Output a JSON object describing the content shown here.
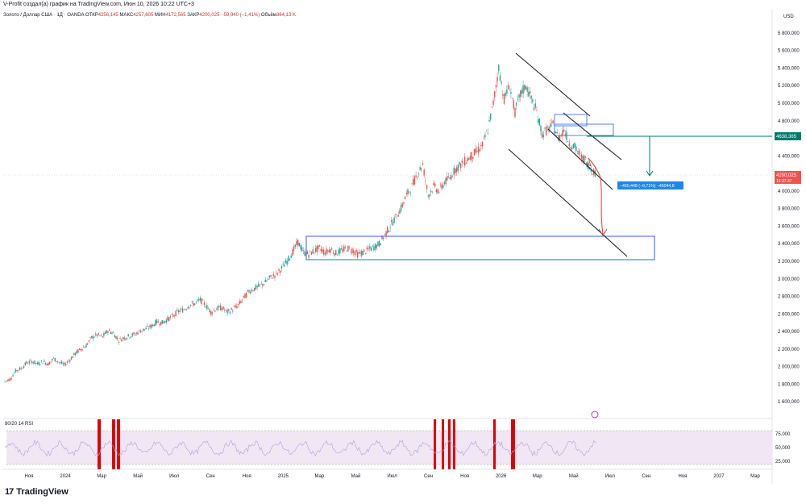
{
  "header": {
    "title": "V-Profit создал(а) график на TradingView.com, Июн 10, 2026 10:22 UTC+3"
  },
  "legend": {
    "symbol": "Золото / Доллар США · 1Д · OANDA",
    "open_label": "ОТКР",
    "open": "4256,145",
    "high_label": "МАКС",
    "high": "4257,605",
    "low_label": "МИН",
    "low": "4172,565",
    "close_label": "ЗАКР",
    "close": "4200,025",
    "change": "−59,940 (−1,41%)",
    "volume_label": "Объём",
    "volume": "364,13 K"
  },
  "currency": "USD",
  "price_tags": {
    "level": "4638,365",
    "last": "4200,025",
    "countdown": "13:37:37"
  },
  "measure_label": "−450,448 (−9,71%) −45044,8",
  "rsi": {
    "label": "80/20 14 RSI",
    "levels": [
      "75,000",
      "50,000",
      "25,000"
    ]
  },
  "brand": {
    "name": "TradingView",
    "mark": "17"
  },
  "colors": {
    "up": "#26a69a",
    "down": "#ef5350",
    "box": "#2962ff",
    "level_line": "#00796b",
    "arrow": "#e53935",
    "rsi_fill": "#f1e6f4",
    "rsi_line": "#b39ddb",
    "rsi_extreme": "#e00000",
    "tag_blue": "#1e88e5"
  },
  "chart_data": {
    "type": "candlestick",
    "ylim": [
      1400,
      5900
    ],
    "y_ticks": [
      "1 600,000",
      "1 800,000",
      "2 000,000",
      "2 200,000",
      "2 400,000",
      "2 600,000",
      "2 800,000",
      "3 000,000",
      "3 200,000",
      "3 400,000",
      "3 600,000",
      "3 800,000",
      "4 000,000",
      "4 200,000",
      "4 400,000",
      "4 600,000",
      "4 800,000",
      "5 000,000",
      "5 200,000",
      "5 400,000",
      "5 600,000",
      "5 800,000"
    ],
    "y_tick_values": [
      1600,
      1800,
      2000,
      2200,
      2400,
      2600,
      2800,
      3000,
      3200,
      3400,
      3600,
      3800,
      4000,
      4200,
      4400,
      4600,
      4800,
      5000,
      5200,
      5400,
      5600,
      5800
    ],
    "x_ticks": [
      "Ноя",
      "2024",
      "Мар",
      "Май",
      "Июл",
      "Сен",
      "Ноя",
      "2025",
      "Мар",
      "Май",
      "Июл",
      "Сен",
      "Ноя",
      "2026",
      "Мар",
      "Май",
      "Июл",
      "Сен",
      "Ноя",
      "2027",
      "Мар"
    ],
    "price_path": [
      [
        0,
        1830
      ],
      [
        4,
        1860
      ],
      [
        8,
        1950
      ],
      [
        12,
        1980
      ],
      [
        16,
        2040
      ],
      [
        20,
        2060
      ],
      [
        24,
        2030
      ],
      [
        28,
        2060
      ],
      [
        32,
        2030
      ],
      [
        36,
        2090
      ],
      [
        40,
        2050
      ],
      [
        44,
        2020
      ],
      [
        48,
        2080
      ],
      [
        52,
        2150
      ],
      [
        56,
        2200
      ],
      [
        60,
        2240
      ],
      [
        64,
        2330
      ],
      [
        68,
        2360
      ],
      [
        72,
        2340
      ],
      [
        76,
        2410
      ],
      [
        80,
        2380
      ],
      [
        84,
        2300
      ],
      [
        88,
        2330
      ],
      [
        92,
        2350
      ],
      [
        96,
        2370
      ],
      [
        100,
        2410
      ],
      [
        104,
        2430
      ],
      [
        108,
        2460
      ],
      [
        112,
        2510
      ],
      [
        116,
        2500
      ],
      [
        120,
        2540
      ],
      [
        124,
        2580
      ],
      [
        128,
        2630
      ],
      [
        132,
        2650
      ],
      [
        136,
        2700
      ],
      [
        140,
        2720
      ],
      [
        144,
        2760
      ],
      [
        148,
        2700
      ],
      [
        152,
        2620
      ],
      [
        156,
        2660
      ],
      [
        160,
        2670
      ],
      [
        164,
        2620
      ],
      [
        168,
        2650
      ],
      [
        172,
        2700
      ],
      [
        176,
        2780
      ],
      [
        180,
        2860
      ],
      [
        184,
        2890
      ],
      [
        188,
        2920
      ],
      [
        192,
        2960
      ],
      [
        196,
        3020
      ],
      [
        200,
        3050
      ],
      [
        204,
        3120
      ],
      [
        208,
        3200
      ],
      [
        212,
        3300
      ],
      [
        216,
        3420
      ],
      [
        220,
        3300
      ],
      [
        224,
        3280
      ],
      [
        228,
        3320
      ],
      [
        232,
        3350
      ],
      [
        236,
        3300
      ],
      [
        240,
        3340
      ],
      [
        244,
        3290
      ],
      [
        248,
        3320
      ],
      [
        252,
        3350
      ],
      [
        256,
        3330
      ],
      [
        260,
        3280
      ],
      [
        264,
        3300
      ],
      [
        268,
        3330
      ],
      [
        272,
        3360
      ],
      [
        276,
        3400
      ],
      [
        280,
        3500
      ],
      [
        284,
        3600
      ],
      [
        288,
        3700
      ],
      [
        292,
        3800
      ],
      [
        296,
        3950
      ],
      [
        300,
        4050
      ],
      [
        304,
        4200
      ],
      [
        308,
        4300
      ],
      [
        312,
        3950
      ],
      [
        316,
        4050
      ],
      [
        320,
        4000
      ],
      [
        324,
        4100
      ],
      [
        328,
        4150
      ],
      [
        332,
        4250
      ],
      [
        336,
        4300
      ],
      [
        340,
        4350
      ],
      [
        344,
        4400
      ],
      [
        348,
        4450
      ],
      [
        352,
        4520
      ],
      [
        356,
        4700
      ],
      [
        360,
        5000
      ],
      [
        364,
        5400
      ],
      [
        368,
        5050
      ],
      [
        372,
        5200
      ],
      [
        376,
        4900
      ],
      [
        380,
        5100
      ],
      [
        384,
        5200
      ],
      [
        388,
        5050
      ],
      [
        392,
        4900
      ],
      [
        396,
        4650
      ],
      [
        400,
        4700
      ],
      [
        404,
        4750
      ],
      [
        408,
        4600
      ],
      [
        412,
        4700
      ],
      [
        416,
        4550
      ],
      [
        420,
        4500
      ],
      [
        424,
        4400
      ],
      [
        428,
        4350
      ],
      [
        432,
        4250
      ],
      [
        436,
        4200
      ]
    ],
    "resistance_level": 4638.365,
    "last_price": 4200.025,
    "consolidation_box": [
      3250,
      3500
    ],
    "resistance_box": [
      4650,
      4900
    ],
    "rsi_ylim": [
      0,
      100
    ],
    "rsi_levels": [
      20,
      50,
      80
    ]
  }
}
